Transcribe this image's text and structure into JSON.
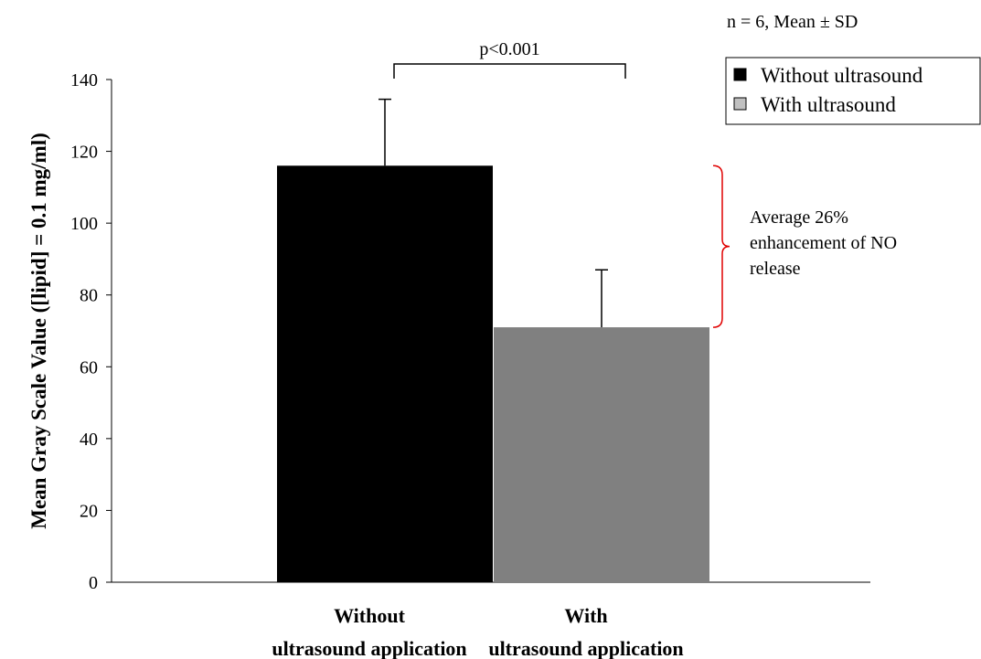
{
  "chart_data": {
    "type": "bar",
    "categories": [
      [
        "Without",
        "ultrasound application"
      ],
      [
        "With",
        "ultrasound application"
      ]
    ],
    "series": [
      {
        "name": "Without ultrasound",
        "values": [
          116,
          null
        ],
        "errors": [
          18.5,
          null
        ],
        "color": "#000000"
      },
      {
        "name": "With ultrasound",
        "values": [
          null,
          71
        ],
        "errors": [
          null,
          16
        ],
        "color": "#808080"
      }
    ],
    "ylabel": "Mean Gray Scale Value ([lipid] = 0.1 mg/ml)",
    "ylim": [
      0,
      140
    ],
    "yticks": [
      0,
      20,
      40,
      60,
      80,
      100,
      120,
      140
    ],
    "grid": false,
    "legend_position": "top-right",
    "sample_note": "n = 6, Mean ± SD",
    "significance": "p<0.001",
    "annotation": [
      "Average 26%",
      "enhancement of NO",
      "release"
    ],
    "annotation_color": "#e00000"
  }
}
